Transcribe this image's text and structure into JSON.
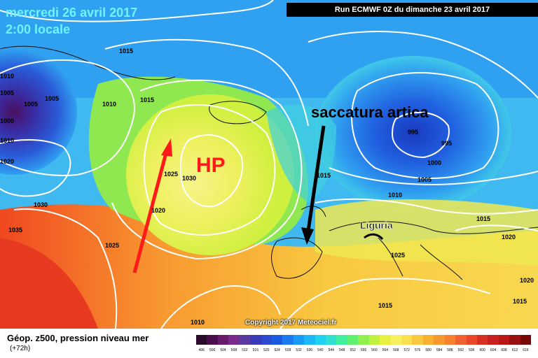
{
  "header": {
    "date_label": "mercredi 26 avril 2017",
    "time_label": "2:00 locale",
    "run_label": "Run ECMWF 0Z du dimanche 23 avril 2017"
  },
  "annotations": {
    "hp_label": "HP",
    "trough_label": "saccatura artica",
    "region_label": "Liguria"
  },
  "isobars": [
    {
      "id": "1005a",
      "text": "1005"
    },
    {
      "id": "1005b",
      "text": "1005"
    },
    {
      "id": "1005c",
      "text": "1005"
    },
    {
      "id": "1000a",
      "text": "1000"
    },
    {
      "id": "1010a",
      "text": "1010"
    },
    {
      "id": "1015a",
      "text": "1015"
    },
    {
      "id": "1015b",
      "text": "1015"
    },
    {
      "id": "1010b",
      "text": "1010"
    },
    {
      "id": "1020a",
      "text": "1020"
    },
    {
      "id": "1025a",
      "text": "1025"
    },
    {
      "id": "1030a",
      "text": "1030"
    },
    {
      "id": "1030b",
      "text": "1030"
    },
    {
      "id": "1035a",
      "text": "1035"
    },
    {
      "id": "1025b",
      "text": "1025"
    },
    {
      "id": "1020b",
      "text": "1020"
    },
    {
      "id": "1015c",
      "text": "1015"
    },
    {
      "id": "995a",
      "text": "995"
    },
    {
      "id": "995b",
      "text": "995"
    },
    {
      "id": "1000b",
      "text": "1000"
    },
    {
      "id": "1005d",
      "text": "1005"
    },
    {
      "id": "1010c",
      "text": "1010"
    },
    {
      "id": "1015d",
      "text": "1015"
    },
    {
      "id": "1020c",
      "text": "1020"
    },
    {
      "id": "1025c",
      "text": "1025"
    },
    {
      "id": "1015e",
      "text": "1015"
    },
    {
      "id": "1010d",
      "text": "1010"
    },
    {
      "id": "1020d",
      "text": "1020"
    },
    {
      "id": "1015f",
      "text": "1015"
    },
    {
      "id": "1010e",
      "text": "1010"
    }
  ],
  "footer": {
    "title": "Géop. z500, pression niveau mer",
    "forecast_hour": "(+72h)",
    "copyright": "Copyright 2017 Meteociel.fr"
  },
  "legend_scale": {
    "values": [
      "496",
      "500",
      "504",
      "508",
      "512",
      "516",
      "520",
      "524",
      "528",
      "532",
      "536",
      "540",
      "544",
      "548",
      "552",
      "556",
      "560",
      "564",
      "568",
      "572",
      "576",
      "580",
      "584",
      "588",
      "592",
      "596",
      "600",
      "604",
      "608",
      "612",
      "616"
    ],
    "colors": [
      "#2a0b2a",
      "#4a0f4a",
      "#6a1a6a",
      "#7a2a8a",
      "#5a3aa0",
      "#3a3ab8",
      "#2a4ad0",
      "#1a5ae0",
      "#1a7af0",
      "#1a9af8",
      "#1ab8f8",
      "#20d0f0",
      "#30e0d0",
      "#40f0a0",
      "#60f070",
      "#90f050",
      "#c0f040",
      "#e8f040",
      "#f8f060",
      "#f8e050",
      "#f8c840",
      "#f8b030",
      "#f89830",
      "#f88030",
      "#f06030",
      "#e84828",
      "#d83020",
      "#c82020",
      "#b81818",
      "#981010",
      "#780808"
    ]
  },
  "colors": {
    "hp": "#ff1a1a",
    "arrow_red": "#ff1a1a",
    "arrow_black": "#000000",
    "trough_text": "#000000",
    "title_text": "#6ff3ff"
  }
}
